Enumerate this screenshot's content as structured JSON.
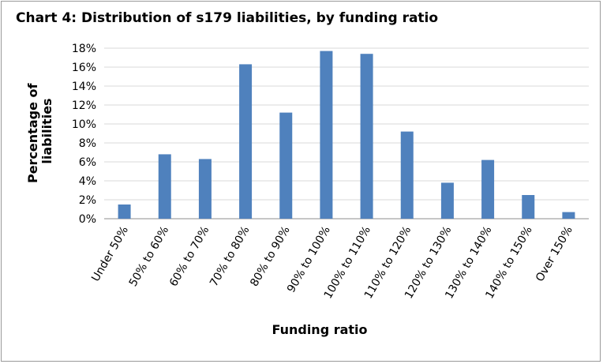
{
  "chart_data": {
    "type": "bar",
    "title": "Chart 4: Distribution of s179 liabilities, by funding ratio",
    "xlabel": "Funding ratio",
    "ylabel": "Percentage of liabilities",
    "ylabel_lines": [
      "Percentage of",
      "liabilities"
    ],
    "categories": [
      "Under 50%",
      "50% to 60%",
      "60% to 70%",
      "70% to 80%",
      "80% to 90%",
      "90% to 100%",
      "100% to 110%",
      "110% to 120%",
      "120% to 130%",
      "130% to 140%",
      "140% to 150%",
      "Over 150%"
    ],
    "values": [
      1.5,
      6.8,
      6.3,
      16.3,
      11.2,
      17.7,
      17.4,
      9.2,
      3.8,
      6.2,
      2.5,
      0.7
    ],
    "ylim": [
      0,
      18
    ],
    "yticks": [
      0,
      2,
      4,
      6,
      8,
      10,
      12,
      14,
      16,
      18
    ],
    "ytick_labels": [
      "0%",
      "2%",
      "4%",
      "6%",
      "8%",
      "10%",
      "12%",
      "14%",
      "16%",
      "18%"
    ],
    "grid": true,
    "legend": "none",
    "bar_color": "#4f81bd"
  }
}
